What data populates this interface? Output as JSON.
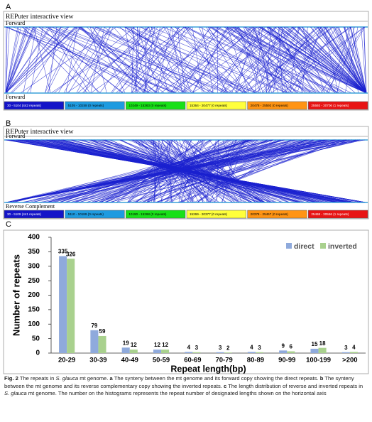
{
  "panels": [
    {
      "label": "A",
      "header": "REPuter interactive view",
      "top_label": "Forward",
      "bottom_label": "Forward",
      "legend": [
        {
          "text": "30 - 5104 (442 repeats)",
          "color": "#1414c8"
        },
        {
          "text": "5105 - 10248 (0 repeats)",
          "color": "#1e9be0"
        },
        {
          "text": "10249 - 15363 (0 repeats)",
          "color": "#18e018"
        },
        {
          "text": "15364 - 20477 (0 repeats)",
          "color": "#ffff3c"
        },
        {
          "text": "20478 - 25592 (0 repeats)",
          "color": "#ff9414"
        },
        {
          "text": "25593 - 30706 (1 repeats)",
          "color": "#e81414"
        }
      ]
    },
    {
      "label": "B",
      "header": "REPuter interactive view",
      "top_label": "Forward",
      "bottom_label": "Reverse Complement",
      "legend": [
        {
          "text": "30 - 5109 (441 repeats)",
          "color": "#1414c8"
        },
        {
          "text": "5110 - 10189 (0 repeats)",
          "color": "#1e9be0"
        },
        {
          "text": "10190 - 15268 (0 repeats)",
          "color": "#18e018"
        },
        {
          "text": "15269 - 20377 (0 repeats)",
          "color": "#ffff3c"
        },
        {
          "text": "20378 - 25467 (0 repeats)",
          "color": "#ff9414"
        },
        {
          "text": "25468 - 30556 (1 repeats)",
          "color": "#e81414"
        }
      ]
    }
  ],
  "chart_label": "C",
  "chart_data": {
    "type": "bar",
    "categories": [
      "20-29",
      "30-39",
      "40-49",
      "50-59",
      "60-69",
      "70-79",
      "80-89",
      "90-99",
      "100-199",
      ">200"
    ],
    "series": [
      {
        "name": "direct",
        "color": "#8faadc",
        "values": [
          335,
          79,
          19,
          12,
          4,
          3,
          4,
          9,
          15,
          3
        ]
      },
      {
        "name": "inverted",
        "color": "#a9d18e",
        "values": [
          326,
          59,
          12,
          12,
          3,
          2,
          3,
          6,
          18,
          4
        ]
      }
    ],
    "ylim": [
      0,
      400
    ],
    "yticks": [
      0,
      50,
      100,
      150,
      200,
      250,
      300,
      350,
      400
    ],
    "ylabel": "Number of repeats",
    "xlabel": "Repeat length(bp)",
    "legend": "top-right"
  },
  "caption": [
    {
      "text": "Fig. 2",
      "bold": true
    },
    {
      "text": " The repeats in "
    },
    {
      "text": "S. glauca",
      "italic": true
    },
    {
      "text": " mt genome. "
    },
    {
      "text": "a",
      "bold": true
    },
    {
      "text": " The synteny between the mt genome and its forward copy showing the direct repeats. "
    },
    {
      "text": "b",
      "bold": true
    },
    {
      "text": " The synteny between the mt genome and its reverse complementary copy showing the inverted repeats. "
    },
    {
      "text": "c",
      "bold": true
    },
    {
      "text": " The length distribution of reverse and inverted repeats in "
    },
    {
      "text": "S. glauca",
      "italic": true
    },
    {
      "text": " mt genome. The number on the histograms represents the repeat number of designated lengths shown on the horizontal axis"
    }
  ]
}
